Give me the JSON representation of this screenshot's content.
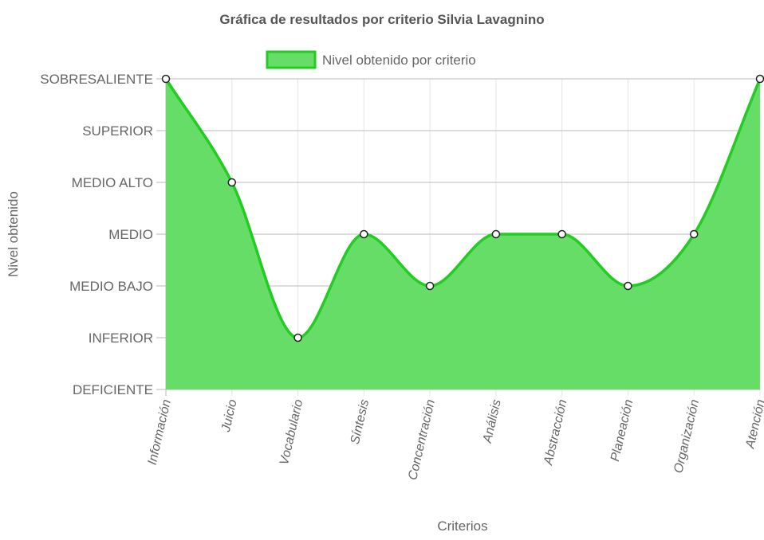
{
  "chart_data": {
    "type": "area",
    "title": "Gráfica de resultados por criterio Silvia Lavagnino",
    "xlabel": "Criterios",
    "ylabel": "Nivel obtenido",
    "categories": [
      "Información",
      "Juicio",
      "Vocabulario",
      "Síntesis",
      "Concentración",
      "Análisis",
      "Abstracción",
      "Planeación",
      "Organización",
      "Atención"
    ],
    "y_levels": [
      "DEFICIENTE",
      "INFERIOR",
      "MEDIO BAJO",
      "MEDIO",
      "MEDIO ALTO",
      "SUPERIOR",
      "SOBRESALIENTE"
    ],
    "ylim": [
      0,
      6
    ],
    "series": [
      {
        "name": "Nivel obtenido por criterio",
        "values": [
          "SOBRESALIENTE",
          "MEDIO ALTO",
          "INFERIOR",
          "MEDIO",
          "MEDIO BAJO",
          "MEDIO",
          "MEDIO",
          "MEDIO BAJO",
          "MEDIO",
          "SOBRESALIENTE"
        ],
        "fill_color": "#66dd66",
        "line_color": "#22cc22"
      }
    ],
    "grid": true,
    "legend_position": "top",
    "smooth": true
  }
}
